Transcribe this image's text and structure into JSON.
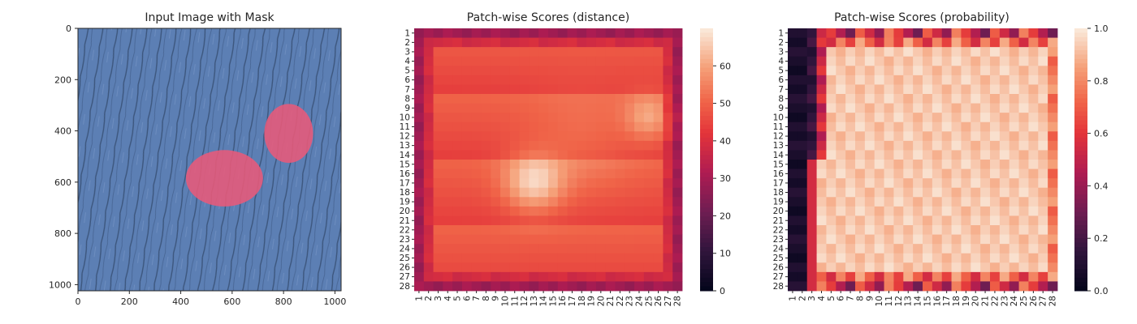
{
  "chart_data": [
    {
      "type": "image",
      "title": "Input Image with Mask",
      "x_ticks": [
        0,
        200,
        400,
        600,
        800,
        1000
      ],
      "y_ticks": [
        0,
        200,
        400,
        600,
        800,
        1000
      ],
      "xlim": [
        0,
        1024
      ],
      "ylim": [
        1024,
        0
      ],
      "colors": {
        "background": "#5c7fb4",
        "mask": "#e85a7a"
      },
      "mask_regions": [
        {
          "name": "left-blob",
          "cx": 570,
          "cy": 585,
          "rx": 150,
          "ry": 110
        },
        {
          "name": "right-blob",
          "cx": 820,
          "cy": 410,
          "rx": 95,
          "ry": 115
        }
      ]
    },
    {
      "type": "heatmap",
      "title": "Patch-wise Scores (distance)",
      "rows": 28,
      "cols": 28,
      "row_labels": [
        "1",
        "2",
        "3",
        "4",
        "5",
        "6",
        "7",
        "8",
        "9",
        "10",
        "11",
        "12",
        "13",
        "14",
        "15",
        "16",
        "17",
        "18",
        "19",
        "20",
        "21",
        "22",
        "23",
        "24",
        "25",
        "26",
        "27",
        "28"
      ],
      "col_labels": [
        "1",
        "2",
        "3",
        "4",
        "5",
        "6",
        "7",
        "8",
        "9",
        "10",
        "11",
        "12",
        "13",
        "14",
        "15",
        "16",
        "17",
        "18",
        "19",
        "20",
        "21",
        "22",
        "23",
        "24",
        "25",
        "26",
        "27",
        "28"
      ],
      "value_range": [
        0,
        70
      ],
      "colorbar_ticks": [
        0,
        10,
        20,
        30,
        40,
        50,
        60
      ],
      "colormap": "rocket",
      "hotspots": [
        {
          "row": 17,
          "col": 13,
          "value": 67
        },
        {
          "row": 10,
          "col": 25,
          "value": 62
        }
      ],
      "border_value": 30,
      "interior_value": 47
    },
    {
      "type": "heatmap",
      "title": "Patch-wise Scores (probability)",
      "rows": 28,
      "cols": 28,
      "row_labels": [
        "1",
        "2",
        "3",
        "4",
        "5",
        "6",
        "7",
        "8",
        "9",
        "10",
        "11",
        "12",
        "13",
        "14",
        "15",
        "16",
        "17",
        "18",
        "19",
        "20",
        "21",
        "22",
        "23",
        "24",
        "25",
        "26",
        "27",
        "28"
      ],
      "col_labels": [
        "1",
        "2",
        "3",
        "4",
        "5",
        "6",
        "7",
        "8",
        "9",
        "10",
        "11",
        "12",
        "13",
        "14",
        "15",
        "16",
        "17",
        "18",
        "19",
        "20",
        "21",
        "22",
        "23",
        "24",
        "25",
        "26",
        "27",
        "28"
      ],
      "value_range": [
        0,
        1
      ],
      "colorbar_ticks": [
        "0.0",
        "0.2",
        "0.4",
        "0.6",
        "0.8",
        "1.0"
      ],
      "colormap": "rocket",
      "border_value": 0.1,
      "interior_value": 0.93
    }
  ]
}
